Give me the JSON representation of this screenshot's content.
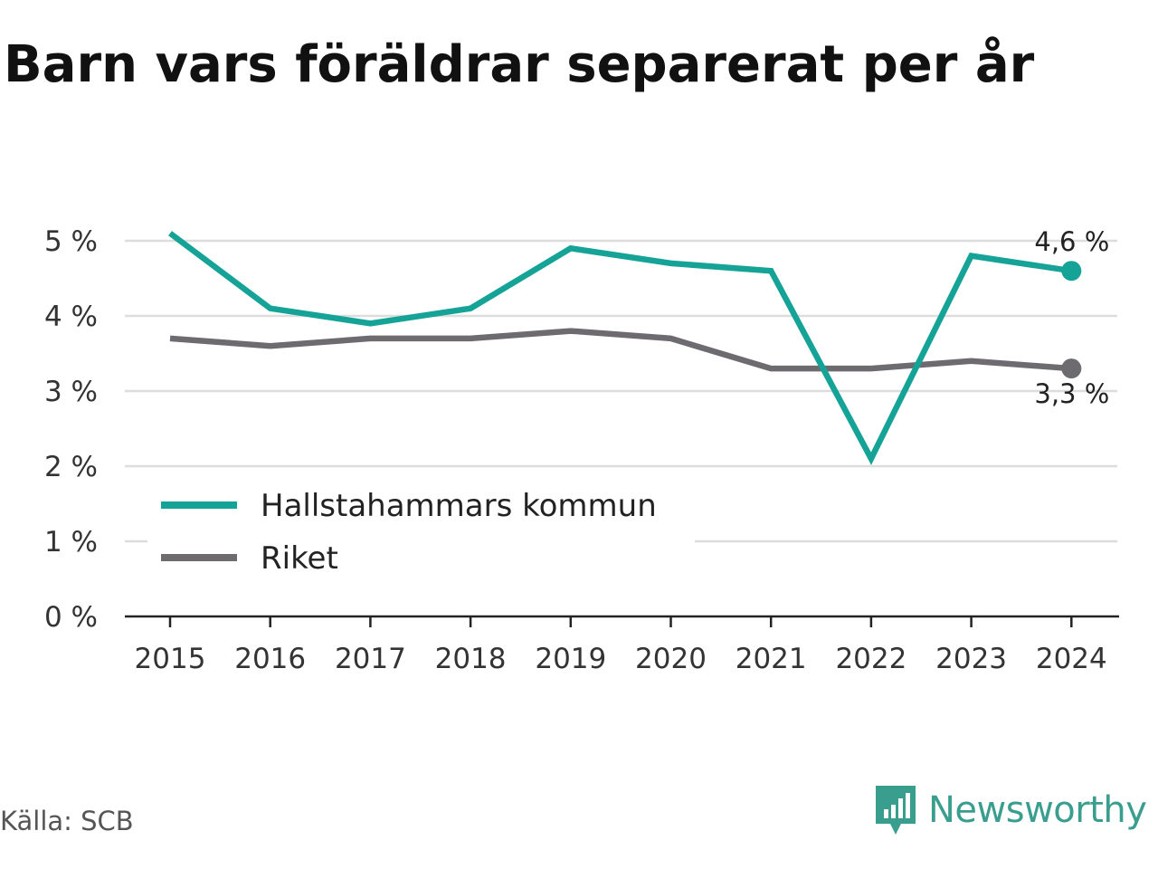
{
  "title": "Barn vars föräldrar separerat per år",
  "source": "Källa: SCB",
  "brand": "Newsworthy",
  "colors": {
    "hallstahammar": "#16a397",
    "riket": "#6d6b70",
    "grid": "#dddddd",
    "axis": "#222222",
    "brand": "#3a9e8f"
  },
  "icons": {
    "brand_logo": "newsworthy-chart-icon"
  },
  "chart_data": {
    "type": "line",
    "x": [
      "2015",
      "2016",
      "2017",
      "2018",
      "2019",
      "2020",
      "2021",
      "2022",
      "2023",
      "2024"
    ],
    "series": [
      {
        "name": "Hallstahammars kommun",
        "values": [
          5.1,
          4.1,
          3.9,
          4.1,
          4.9,
          4.7,
          4.6,
          2.1,
          4.8,
          4.6
        ],
        "end_label": "4,6 %"
      },
      {
        "name": "Riket",
        "values": [
          3.7,
          3.6,
          3.7,
          3.7,
          3.8,
          3.7,
          3.3,
          3.3,
          3.4,
          3.3
        ],
        "end_label": "3,3 %"
      }
    ],
    "y_ticks": [
      0,
      1,
      2,
      3,
      4,
      5
    ],
    "y_tick_labels": [
      "0 %",
      "1 %",
      "2 %",
      "3 %",
      "4 %",
      "5 %"
    ],
    "ylim": [
      0,
      5
    ],
    "grid": true,
    "legend_position": "bottom-left"
  }
}
